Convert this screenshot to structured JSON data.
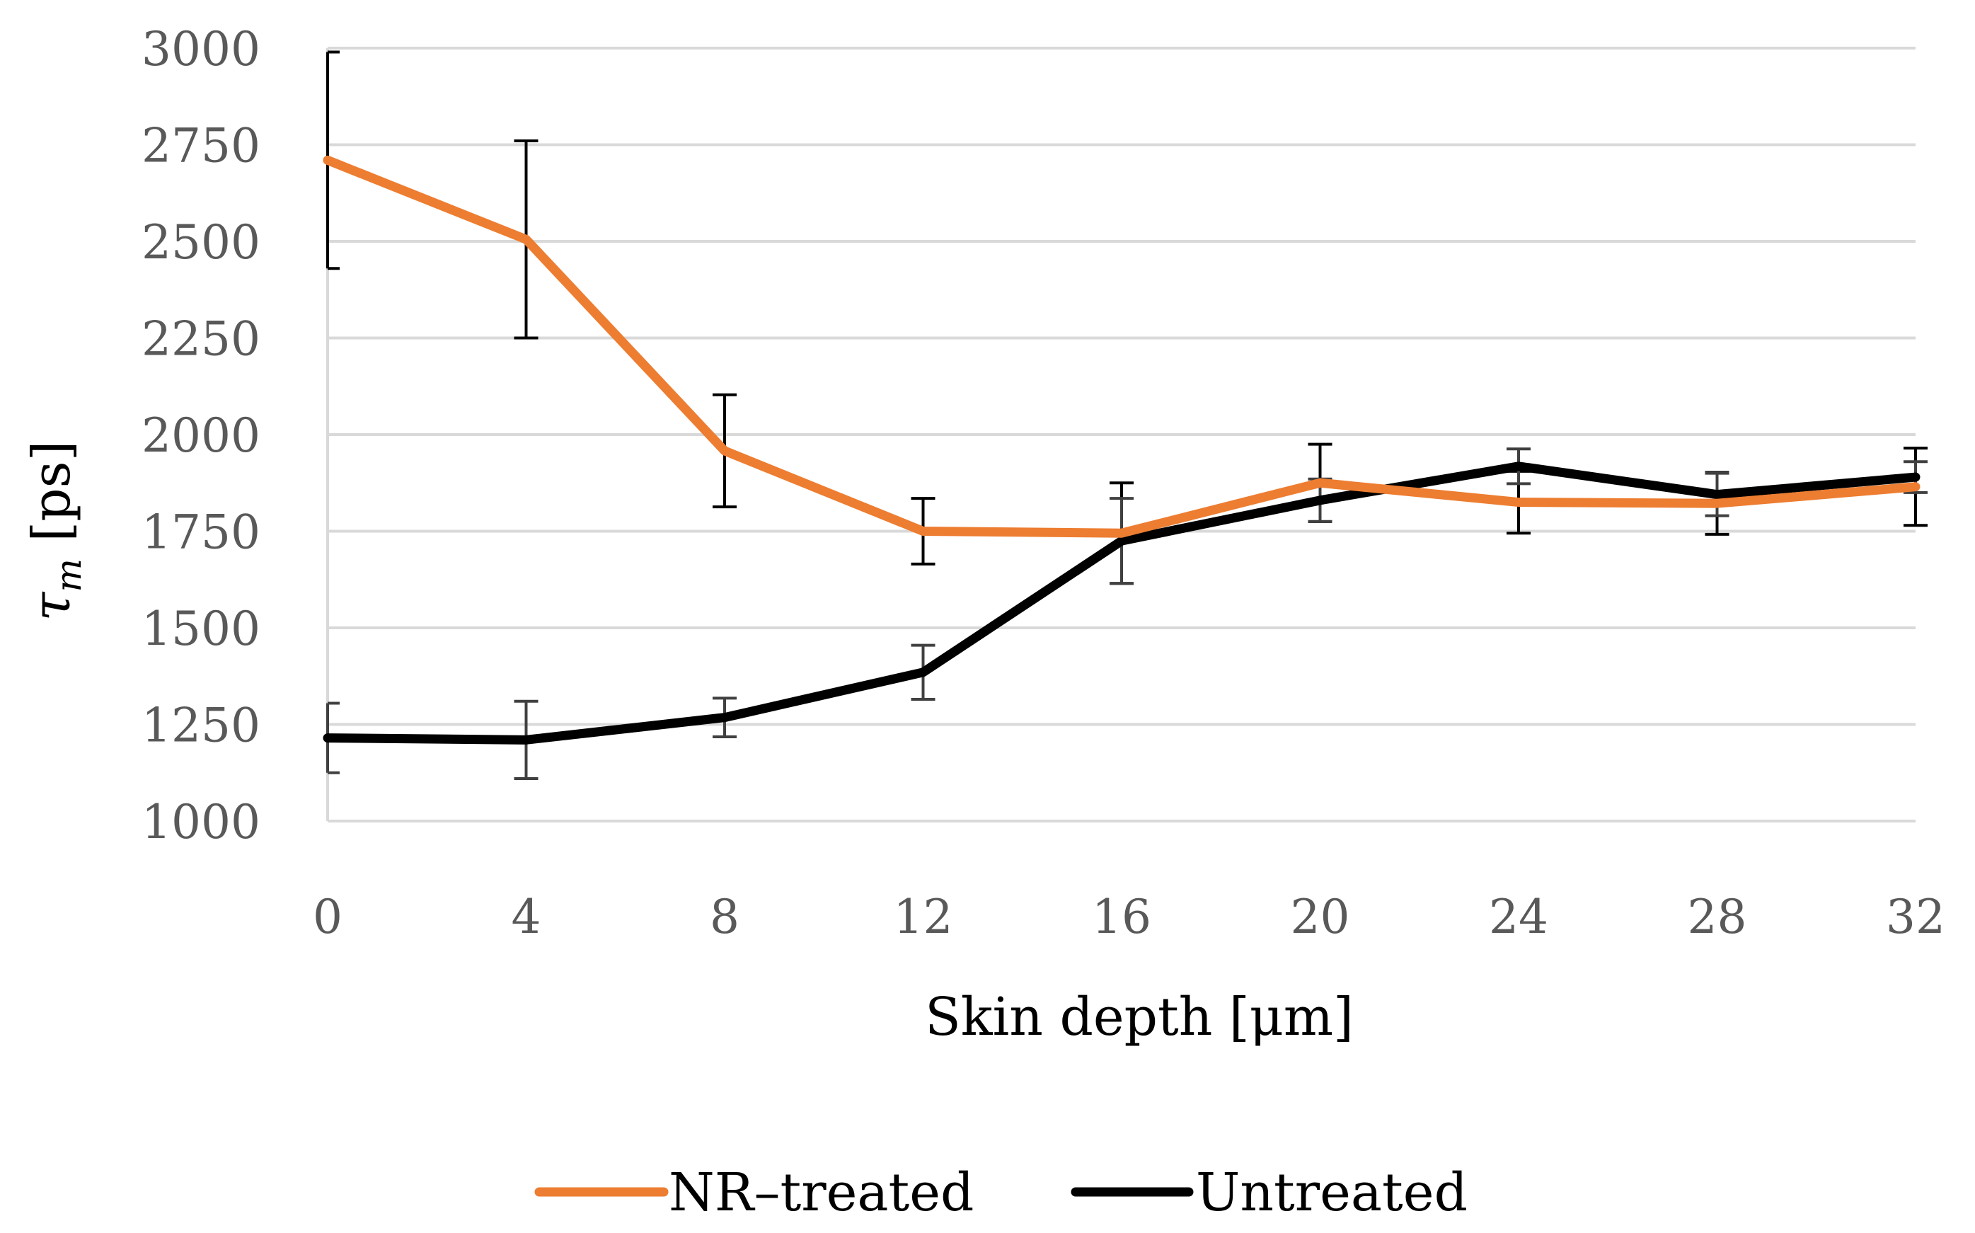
{
  "chart_data": {
    "type": "line",
    "x": [
      0,
      4,
      8,
      12,
      16,
      20,
      24,
      28,
      32
    ],
    "series": [
      {
        "name": "NR–treated",
        "color": "#ED7D31",
        "values": [
          2710,
          2505,
          1958,
          1750,
          1745,
          1875,
          1825,
          1822,
          1865
        ],
        "error": [
          280,
          255,
          145,
          85,
          130,
          100,
          80,
          80,
          100
        ]
      },
      {
        "name": "Untreated",
        "color": "#000000",
        "values": [
          1215,
          1210,
          1268,
          1385,
          1725,
          1830,
          1918,
          1845,
          1890
        ],
        "error": [
          90,
          100,
          50,
          70,
          110,
          55,
          45,
          55,
          40
        ]
      }
    ],
    "xlabel": "Skin depth [μm]",
    "ylabel": {
      "symbol": "τ",
      "subscript": "m",
      "unit": " [ps]"
    },
    "xticks": [
      "0",
      "4",
      "8",
      "12",
      "16",
      "20",
      "24",
      "28",
      "32"
    ],
    "yticks": [
      "1000",
      "1250",
      "1500",
      "1750",
      "2000",
      "2250",
      "2500",
      "2750",
      "3000"
    ],
    "xlim": [
      0,
      32
    ],
    "ylim": [
      1000,
      3000
    ],
    "grid": true,
    "legend_position": "bottom"
  }
}
